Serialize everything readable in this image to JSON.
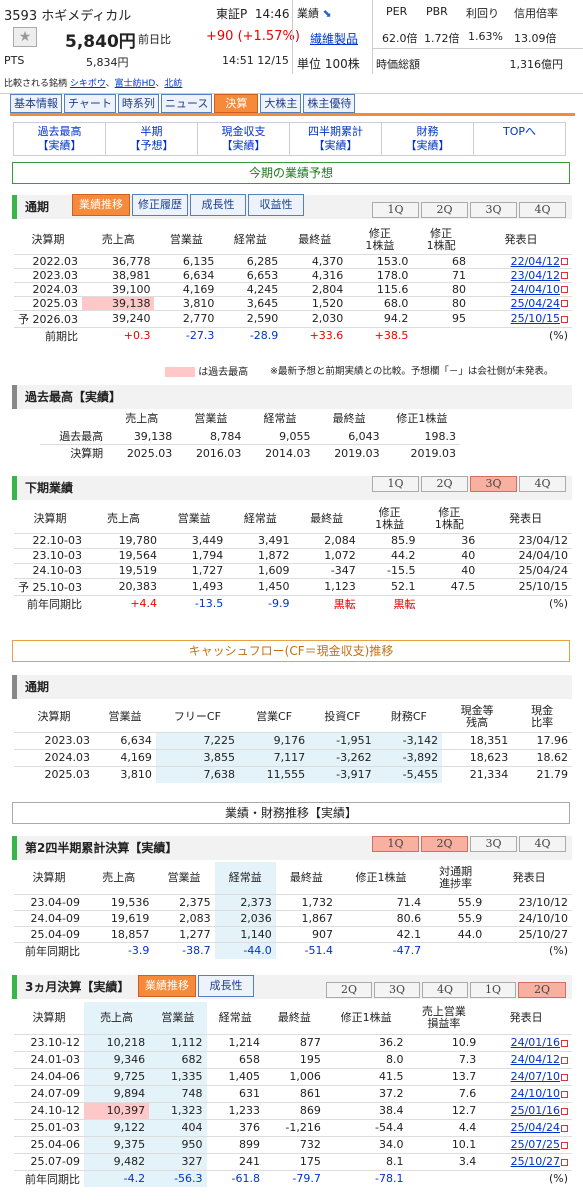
{
  "header": {
    "code_name": "3593 ホギメディカル",
    "market": "東証P",
    "time": "14:46",
    "price": "5,840円",
    "prev_label": "前日比",
    "change": "+90 (+1.57%)",
    "pts_label": "PTS",
    "pts_value": "5,834円",
    "pts_time": "14:51 12/15",
    "related_label": "比較される銘柄",
    "related": [
      "シキボウ",
      "富士紡HD",
      "北紡"
    ],
    "kind_label": "業績",
    "category": "繊維製品",
    "unit": "単位 100株",
    "metrics": [
      {
        "label": "PER",
        "value": "62.0倍"
      },
      {
        "label": "PBR",
        "value": "1.72倍"
      },
      {
        "label": "利回り",
        "value": "1.63%"
      },
      {
        "label": "信用倍率",
        "value": "13.09倍"
      }
    ],
    "cap_label": "時価総額",
    "cap_value": "1,316億円"
  },
  "tabs": [
    "基本情報",
    "チャート",
    "時系列",
    "ニュース",
    "決算",
    "大株主",
    "株主優待"
  ],
  "subnav": [
    [
      "過去最高",
      "【実績】"
    ],
    [
      "半期",
      "【予想】"
    ],
    [
      "現金収支",
      "【実績】"
    ],
    [
      "四半期累計",
      "【実績】"
    ],
    [
      "財務",
      "【実績】"
    ],
    [
      "TOPへ",
      ""
    ]
  ],
  "section1": "今期の業績予想",
  "annual": {
    "title": "通期",
    "tabs": [
      "業績推移",
      "修正履歴",
      "成長性",
      "収益性"
    ],
    "q": [
      "1Q",
      "2Q",
      "3Q",
      "4Q"
    ],
    "head": [
      "決算期",
      "売上高",
      "営業益",
      "経常益",
      "最終益",
      "修正\n1株益",
      "修正\n1株配",
      "発表日"
    ],
    "rows": [
      [
        "",
        "2022.03",
        "36,778",
        "6,135",
        "6,285",
        "4,370",
        "153.0",
        "68",
        "22/04/12"
      ],
      [
        "",
        "2023.03",
        "38,981",
        "6,634",
        "6,653",
        "4,316",
        "178.0",
        "71",
        "23/04/12"
      ],
      [
        "",
        "2024.03",
        "39,100",
        "4,169",
        "4,245",
        "2,804",
        "115.6",
        "80",
        "24/04/10"
      ],
      [
        "",
        "2025.03",
        "39,138",
        "3,810",
        "3,645",
        "1,520",
        "68.0",
        "80",
        "25/04/24"
      ],
      [
        "予",
        "2026.03",
        "39,240",
        "2,770",
        "2,590",
        "2,030",
        "94.2",
        "95",
        "25/10/15"
      ]
    ],
    "yoy": [
      "前期比",
      "+0.3",
      "-27.3",
      "-28.9",
      "+33.6",
      "+38.5",
      "",
      "(%)"
    ],
    "note1": "は過去最高",
    "note2": "※最新予想と前期実績との比較。予想欄「－」は会社側が未発表。"
  },
  "record": {
    "title": "過去最高【実績】",
    "head": [
      "売上高",
      "営業益",
      "経常益",
      "最終益",
      "修正1株益"
    ],
    "rows": [
      [
        "過去最高",
        "39,138",
        "8,784",
        "9,055",
        "6,043",
        "198.3"
      ],
      [
        "決算期",
        "2025.03",
        "2016.03",
        "2014.03",
        "2019.03",
        "2019.03"
      ]
    ]
  },
  "half": {
    "title": "下期業績",
    "q": [
      "1Q",
      "2Q",
      "3Q",
      "4Q"
    ],
    "head": [
      "決算期",
      "売上高",
      "営業益",
      "経常益",
      "最終益",
      "修正\n1株益",
      "修正\n1株配",
      "発表日"
    ],
    "rows": [
      [
        "",
        "22.10-03",
        "19,780",
        "3,449",
        "3,491",
        "2,084",
        "85.9",
        "36",
        "23/04/12"
      ],
      [
        "",
        "23.10-03",
        "19,564",
        "1,794",
        "1,872",
        "1,072",
        "44.2",
        "40",
        "24/04/10"
      ],
      [
        "",
        "24.10-03",
        "19,519",
        "1,727",
        "1,609",
        "-347",
        "-15.5",
        "40",
        "25/04/24"
      ],
      [
        "予",
        "25.10-03",
        "20,383",
        "1,493",
        "1,450",
        "1,123",
        "52.1",
        "47.5",
        "25/10/15"
      ]
    ],
    "yoy": [
      "前年同期比",
      "+4.4",
      "-13.5",
      "-9.9",
      "黒転",
      "黒転",
      "",
      "(%)"
    ]
  },
  "section2": "キャッシュフロー(CF＝現金収支)推移",
  "cf": {
    "title": "通期",
    "head": [
      "決算期",
      "営業益",
      "フリーCF",
      "営業CF",
      "投資CF",
      "財務CF",
      "現金等\n残高",
      "現金\n比率"
    ],
    "rows": [
      [
        "2023.03",
        "6,634",
        "7,225",
        "9,176",
        "-1,951",
        "-3,142",
        "18,351",
        "17.96"
      ],
      [
        "2024.03",
        "4,169",
        "3,855",
        "7,117",
        "-3,262",
        "-3,892",
        "18,623",
        "18.62"
      ],
      [
        "2025.03",
        "3,810",
        "7,638",
        "11,555",
        "-3,917",
        "-5,455",
        "21,334",
        "21.79"
      ]
    ]
  },
  "section3": "業績・財務推移【実績】",
  "q2": {
    "title": "第2四半期累計決算【実績】",
    "q": [
      "1Q",
      "2Q",
      "3Q",
      "4Q"
    ],
    "head": [
      "決算期",
      "売上高",
      "営業益",
      "経常益",
      "最終益",
      "修正1株益",
      "対通期\n進捗率",
      "発表日"
    ],
    "rows": [
      [
        "23.04-09",
        "19,536",
        "2,375",
        "2,373",
        "1,732",
        "71.4",
        "55.9",
        "23/10/12"
      ],
      [
        "24.04-09",
        "19,619",
        "2,083",
        "2,036",
        "1,867",
        "80.6",
        "55.9",
        "24/10/10"
      ],
      [
        "25.04-09",
        "18,857",
        "1,277",
        "1,140",
        "907",
        "42.1",
        "44.0",
        "25/10/27"
      ]
    ],
    "yoy": [
      "前年同期比",
      "-3.9",
      "-38.7",
      "-44.0",
      "-51.4",
      "-47.7",
      "",
      "(%)"
    ]
  },
  "m3": {
    "title": "3ヵ月決算【実績】",
    "tabs": [
      "業績推移",
      "成長性"
    ],
    "q": [
      "2Q",
      "3Q",
      "4Q",
      "1Q",
      "2Q"
    ],
    "head": [
      "決算期",
      "売上高",
      "営業益",
      "経常益",
      "最終益",
      "修正1株益",
      "売上営業\n損益率",
      "発表日"
    ],
    "rows": [
      [
        "23.10-12",
        "10,218",
        "1,112",
        "1,214",
        "877",
        "36.2",
        "10.9",
        "24/01/16"
      ],
      [
        "24.01-03",
        "9,346",
        "682",
        "658",
        "195",
        "8.0",
        "7.3",
        "24/04/12"
      ],
      [
        "24.04-06",
        "9,725",
        "1,335",
        "1,405",
        "1,006",
        "41.5",
        "13.7",
        "24/07/10"
      ],
      [
        "24.07-09",
        "9,894",
        "748",
        "631",
        "861",
        "37.2",
        "7.6",
        "24/10/10"
      ],
      [
        "24.10-12",
        "10,397",
        "1,323",
        "1,233",
        "869",
        "38.4",
        "12.7",
        "25/01/16"
      ],
      [
        "25.01-03",
        "9,122",
        "404",
        "376",
        "-1,216",
        "-54.4",
        "4.4",
        "25/04/24"
      ],
      [
        "25.04-06",
        "9,375",
        "950",
        "899",
        "732",
        "34.0",
        "10.1",
        "25/07/25"
      ],
      [
        "25.07-09",
        "9,482",
        "327",
        "241",
        "175",
        "8.1",
        "3.4",
        "25/10/27"
      ]
    ],
    "yoy": [
      "前年同期比",
      "-4.2",
      "-56.3",
      "-61.8",
      "-79.7",
      "-78.1",
      "",
      "(%)"
    ]
  }
}
